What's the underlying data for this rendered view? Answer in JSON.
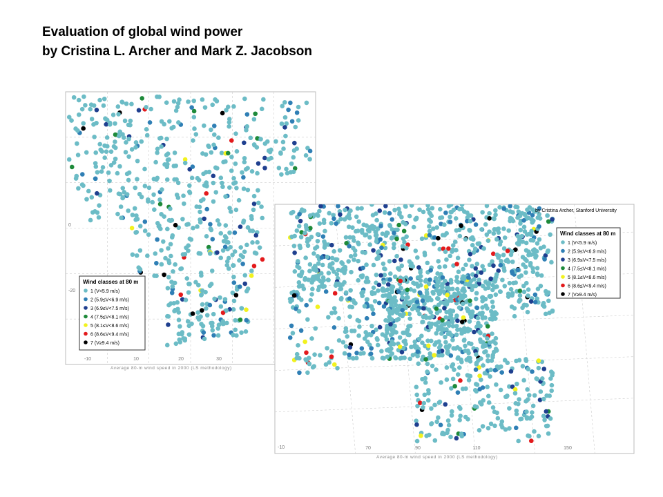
{
  "title": {
    "line1": "Evaluation of global wind power",
    "line2": "by Cristina L. Archer and Mark Z. Jacobson"
  },
  "maps": [
    {
      "legend": {
        "title": "Wind classes at 80 m",
        "classes": [
          {
            "label": "1 (V<5.9 m/s)",
            "color": "#6cbcc6"
          },
          {
            "label": "2 (5.9≤V<6.9 m/s)",
            "color": "#2f7fb5"
          },
          {
            "label": "3 (6.9≤V<7.5 m/s)",
            "color": "#1f3f8f"
          },
          {
            "label": "4 (7.5≤V<8.1 m/s)",
            "color": "#1e8a3a"
          },
          {
            "label": "5 (8.1≤V<8.6 m/s)",
            "color": "#f2f21e"
          },
          {
            "label": "6 (8.6≤V<9.4 m/s)",
            "color": "#e31a1c"
          },
          {
            "label": "7 (V≥9.4 m/s)",
            "color": "#000000"
          }
        ]
      },
      "caption": "Average 80-m wind speed in 2000 (LS methodology)",
      "lon_labels": [
        "-10",
        "10",
        "20",
        "30"
      ],
      "lat_labels": [
        "0",
        "-20"
      ]
    },
    {
      "credit": "by Cristina Archer, Stanford University",
      "legend": {
        "title": "Wind classes at 80 m",
        "classes": [
          {
            "label": "1 (V<5.9 m/s)",
            "color": "#6cbcc6"
          },
          {
            "label": "2 (5.9≤V<6.9 m/s)",
            "color": "#2f7fb5"
          },
          {
            "label": "3 (6.9≤V<7.5 m/s)",
            "color": "#1f3f8f"
          },
          {
            "label": "4 (7.5≤V<8.1 m/s)",
            "color": "#1e8a3a"
          },
          {
            "label": "5 (8.1≤V<8.6 m/s)",
            "color": "#f2f21e"
          },
          {
            "label": "6 (8.6≤V<9.4 m/s)",
            "color": "#e31a1c"
          },
          {
            "label": "7 (V≥9.4 m/s)",
            "color": "#000000"
          }
        ]
      },
      "caption": "Average 80-m wind speed in 2000 (LS methodology)",
      "lon_labels": [
        "70",
        "90",
        "110",
        "150"
      ],
      "lat_labels": [
        "-10"
      ]
    }
  ]
}
